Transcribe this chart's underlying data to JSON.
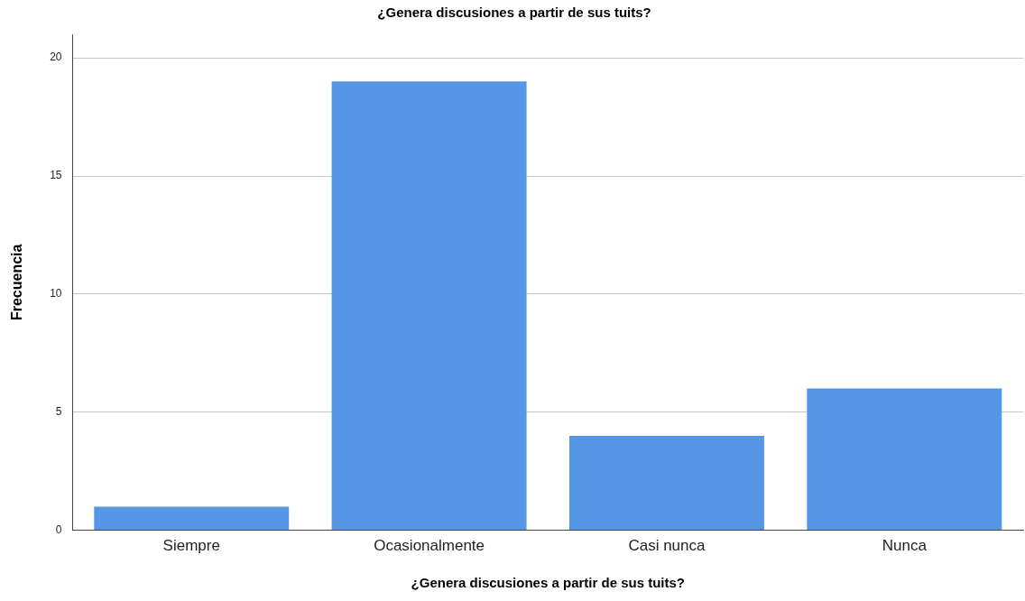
{
  "chart_data": {
    "type": "bar",
    "title": "¿Genera discusiones a partir de sus tuits?",
    "xlabel": "¿Genera discusiones a partir de sus tuits?",
    "ylabel": "Frecuencia",
    "categories": [
      "Siempre",
      "Ocasionalmente",
      "Casi nunca",
      "Nunca"
    ],
    "values": [
      1,
      19,
      4,
      6
    ],
    "color": "#5596e5",
    "ylim": [
      0,
      21
    ],
    "yticks": [
      0,
      5,
      10,
      15,
      20
    ],
    "grid": "y",
    "legend": false
  }
}
